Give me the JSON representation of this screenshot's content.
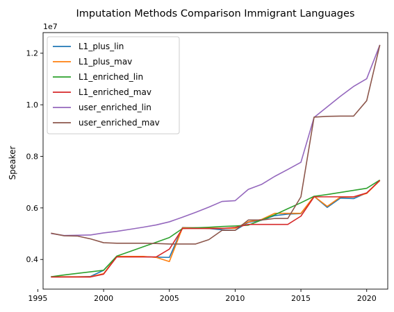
{
  "chart_data": {
    "type": "line",
    "title": "Imputation Methods Comparison Immigrant Languages",
    "xlabel": "",
    "ylabel": "Speaker",
    "y_offset_label": "1e7",
    "xlim": [
      1995.4,
      2021.6
    ],
    "ylim": [
      2850000,
      12800000
    ],
    "xticks": [
      1995,
      2000,
      2005,
      2010,
      2015,
      2020
    ],
    "yticks": [
      4000000,
      6000000,
      8000000,
      10000000,
      12000000
    ],
    "ytick_labels": [
      "0.4",
      "0.6",
      "0.8",
      "1.0",
      "1.2"
    ],
    "grid": false,
    "legend_position": "upper-left",
    "x": [
      1996,
      1997,
      1998,
      1999,
      2000,
      2001,
      2002,
      2003,
      2004,
      2005,
      2006,
      2007,
      2008,
      2009,
      2010,
      2011,
      2012,
      2013,
      2014,
      2015,
      2016,
      2017,
      2018,
      2019,
      2020,
      2021
    ],
    "series": [
      {
        "name": "L1_plus_lin",
        "color": "#1f77b4",
        "values": [
          3330000,
          3330000,
          3330000,
          3340000,
          3580000,
          4120000,
          4120000,
          4110000,
          4090000,
          4080000,
          5240000,
          5230000,
          5200000,
          5150000,
          5130000,
          5440000,
          5520000,
          5700000,
          5760000,
          5780000,
          6450000,
          6020000,
          6380000,
          6360000,
          6580000,
          7060000
        ]
      },
      {
        "name": "L1_plus_mav",
        "color": "#ff7f0e",
        "values": [
          3330000,
          3330000,
          3330000,
          3330000,
          3450000,
          4120000,
          4120000,
          4120000,
          4080000,
          3920000,
          5230000,
          5230000,
          5220000,
          5210000,
          5210000,
          5460000,
          5550000,
          5790000,
          5790000,
          5790000,
          6450000,
          6060000,
          6420000,
          6420000,
          6560000,
          7060000
        ]
      },
      {
        "name": "L1_enriched_lin",
        "color": "#2ca02c",
        "values": [
          3330000,
          3400000,
          3460000,
          3520000,
          3580000,
          4130000,
          4310000,
          4490000,
          4670000,
          4850000,
          5200000,
          5230000,
          5250000,
          5280000,
          5300000,
          5330000,
          5530000,
          5730000,
          5970000,
          6200000,
          6450000,
          6520000,
          6600000,
          6680000,
          6760000,
          7080000
        ]
      },
      {
        "name": "L1_enriched_mav",
        "color": "#d62728",
        "values": [
          3320000,
          3320000,
          3320000,
          3320000,
          3430000,
          4100000,
          4100000,
          4100000,
          4100000,
          4400000,
          5200000,
          5200000,
          5200000,
          5200000,
          5240000,
          5360000,
          5360000,
          5360000,
          5360000,
          5680000,
          6430000,
          6430000,
          6430000,
          6430000,
          6580000,
          7070000
        ]
      },
      {
        "name": "user_enriched_lin",
        "color": "#9467bd",
        "values": [
          5010000,
          4930000,
          4940000,
          4950000,
          5030000,
          5090000,
          5170000,
          5250000,
          5340000,
          5460000,
          5640000,
          5830000,
          6030000,
          6250000,
          6280000,
          6720000,
          6910000,
          7220000,
          7490000,
          7770000,
          9510000,
          9920000,
          10330000,
          10710000,
          11010000,
          12320000
        ]
      },
      {
        "name": "user_enriched_mav",
        "color": "#8c564b",
        "values": [
          5020000,
          4920000,
          4910000,
          4800000,
          4650000,
          4630000,
          4630000,
          4630000,
          4620000,
          4600000,
          4600000,
          4600000,
          4770000,
          5130000,
          5130000,
          5530000,
          5530000,
          5590000,
          5590000,
          6430000,
          9520000,
          9550000,
          9560000,
          9560000,
          10160000,
          12320000
        ]
      }
    ]
  }
}
